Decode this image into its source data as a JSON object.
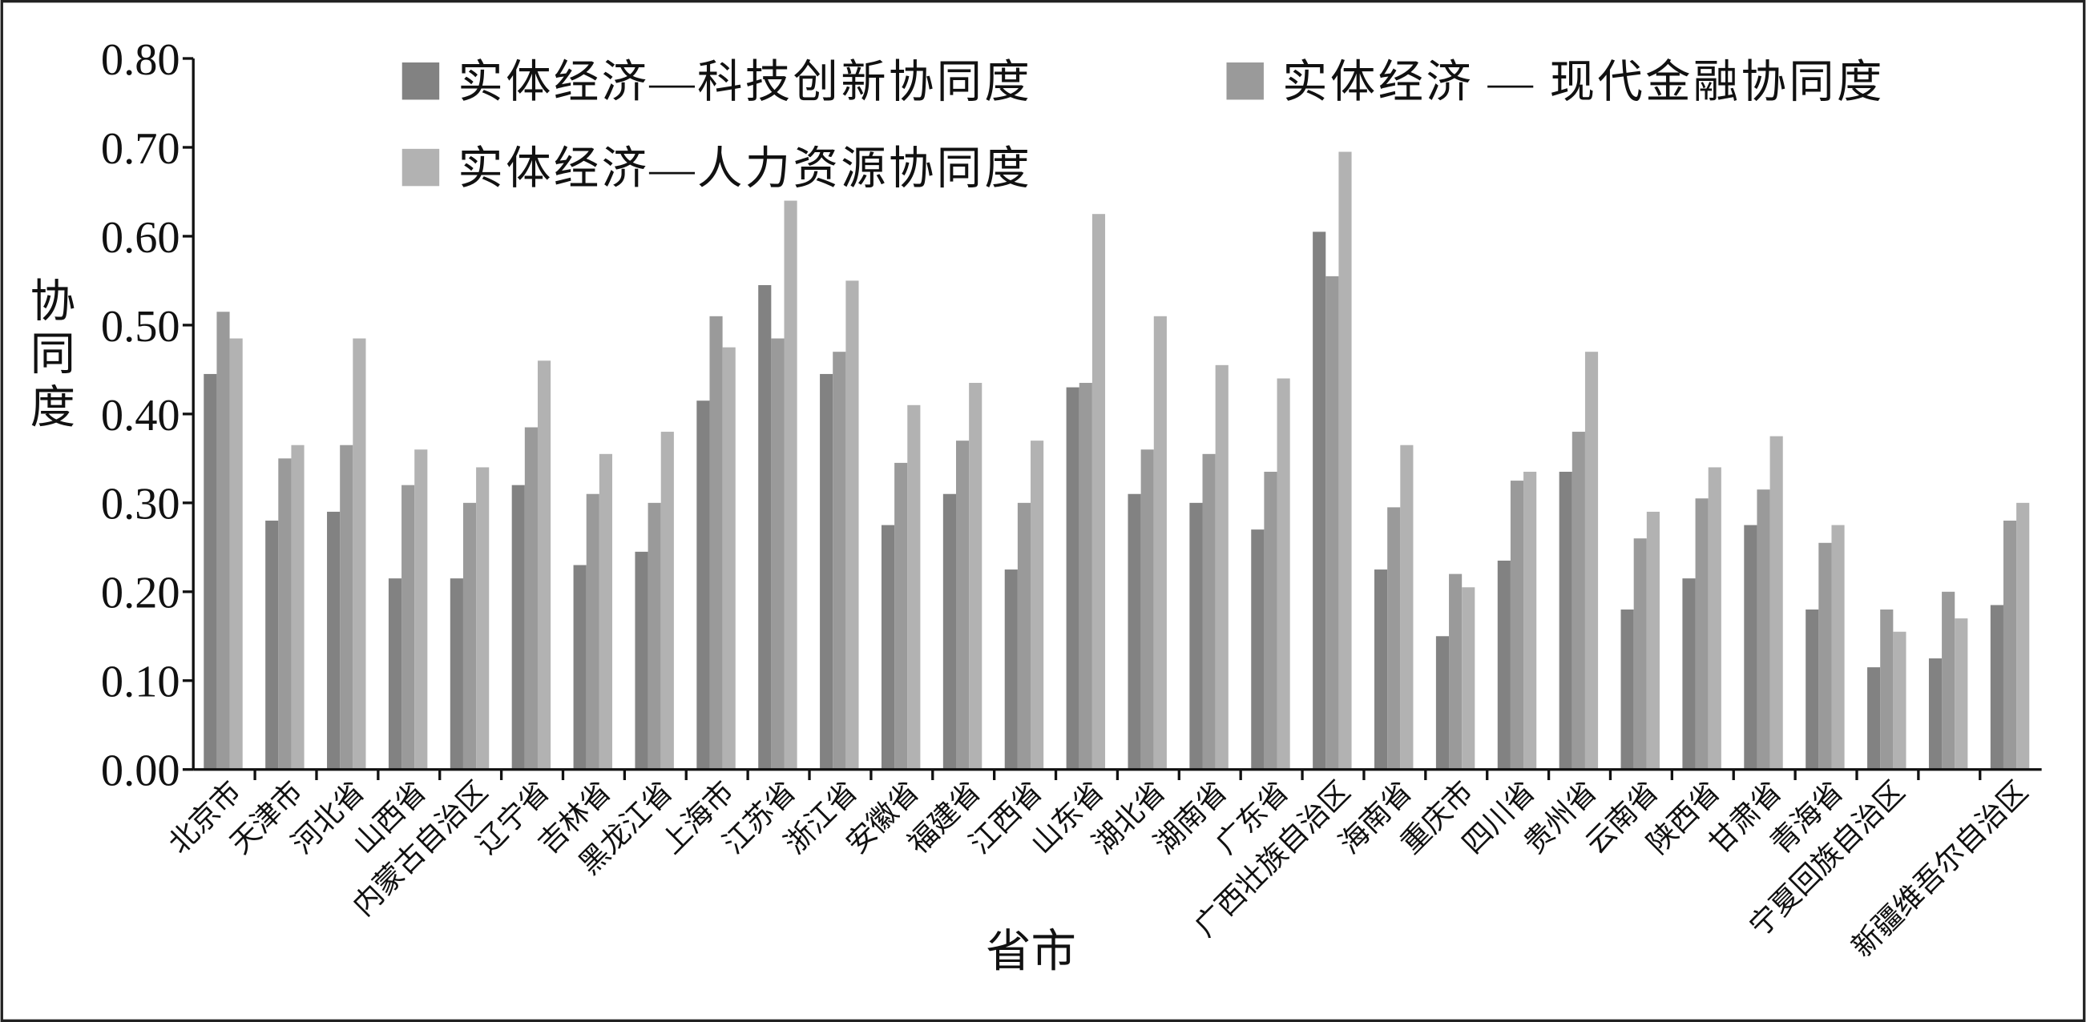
{
  "chart_data": {
    "type": "bar",
    "xlabel": "省市",
    "ylabel": "协同度",
    "categories": [
      "北京市",
      "天津市",
      "河北省",
      "山西省",
      "内蒙古自治区",
      "辽宁省",
      "吉林省",
      "黑龙江省",
      "上海市",
      "江苏省",
      "浙江省",
      "安徽省",
      "福建省",
      "江西省",
      "山东省",
      "湖北省",
      "湖南省",
      "广东省",
      "广西壮族自治区",
      "海南省",
      "重庆市",
      "四川省",
      "贵州省",
      "云南省",
      "陕西省",
      "甘肃省",
      "青海省",
      "宁夏回族自治区",
      null,
      "新疆维吾尔自治区"
    ],
    "series": [
      {
        "name": "实体经济—科技创新协同度",
        "color": "#828282",
        "values": [
          0.445,
          0.28,
          0.29,
          0.215,
          0.215,
          0.32,
          0.23,
          0.245,
          0.415,
          0.545,
          0.445,
          0.275,
          0.31,
          0.225,
          0.43,
          0.31,
          0.3,
          0.27,
          0.605,
          0.225,
          0.15,
          0.235,
          0.335,
          0.18,
          0.215,
          0.275,
          0.18,
          0.115,
          0.125,
          0.185
        ]
      },
      {
        "name": "实体经济 — 现代金融协同度",
        "color": "#9a9a9a",
        "values": [
          0.515,
          0.35,
          0.365,
          0.32,
          0.3,
          0.385,
          0.31,
          0.3,
          0.51,
          0.485,
          0.47,
          0.345,
          0.37,
          0.3,
          0.435,
          0.36,
          0.355,
          0.335,
          0.555,
          0.295,
          0.22,
          0.325,
          0.38,
          0.26,
          0.305,
          0.315,
          0.255,
          0.18,
          0.2,
          0.28
        ]
      },
      {
        "name": "实体经济—人力资源协同度",
        "color": "#b2b2b2",
        "values": [
          0.485,
          0.365,
          0.485,
          0.36,
          0.34,
          0.46,
          0.355,
          0.38,
          0.475,
          0.64,
          0.55,
          0.41,
          0.435,
          0.37,
          0.625,
          0.51,
          0.455,
          0.44,
          0.695,
          0.365,
          0.205,
          0.335,
          0.47,
          0.29,
          0.34,
          0.375,
          0.275,
          0.155,
          0.17,
          0.3
        ]
      }
    ],
    "ylim": [
      0,
      0.8
    ],
    "yticks": [
      {
        "value": 0,
        "label": "0.00"
      },
      {
        "value": 0.1,
        "label": "0.10"
      },
      {
        "value": 0.2,
        "label": "0.20"
      },
      {
        "value": 0.3,
        "label": "0.30"
      },
      {
        "value": 0.4,
        "label": "0.40"
      },
      {
        "value": 0.5,
        "label": "0.50"
      },
      {
        "value": 0.6,
        "label": "0.60"
      },
      {
        "value": 0.7,
        "label": "0.70"
      },
      {
        "value": 0.8,
        "label": "0.80"
      }
    ],
    "grid": false
  }
}
